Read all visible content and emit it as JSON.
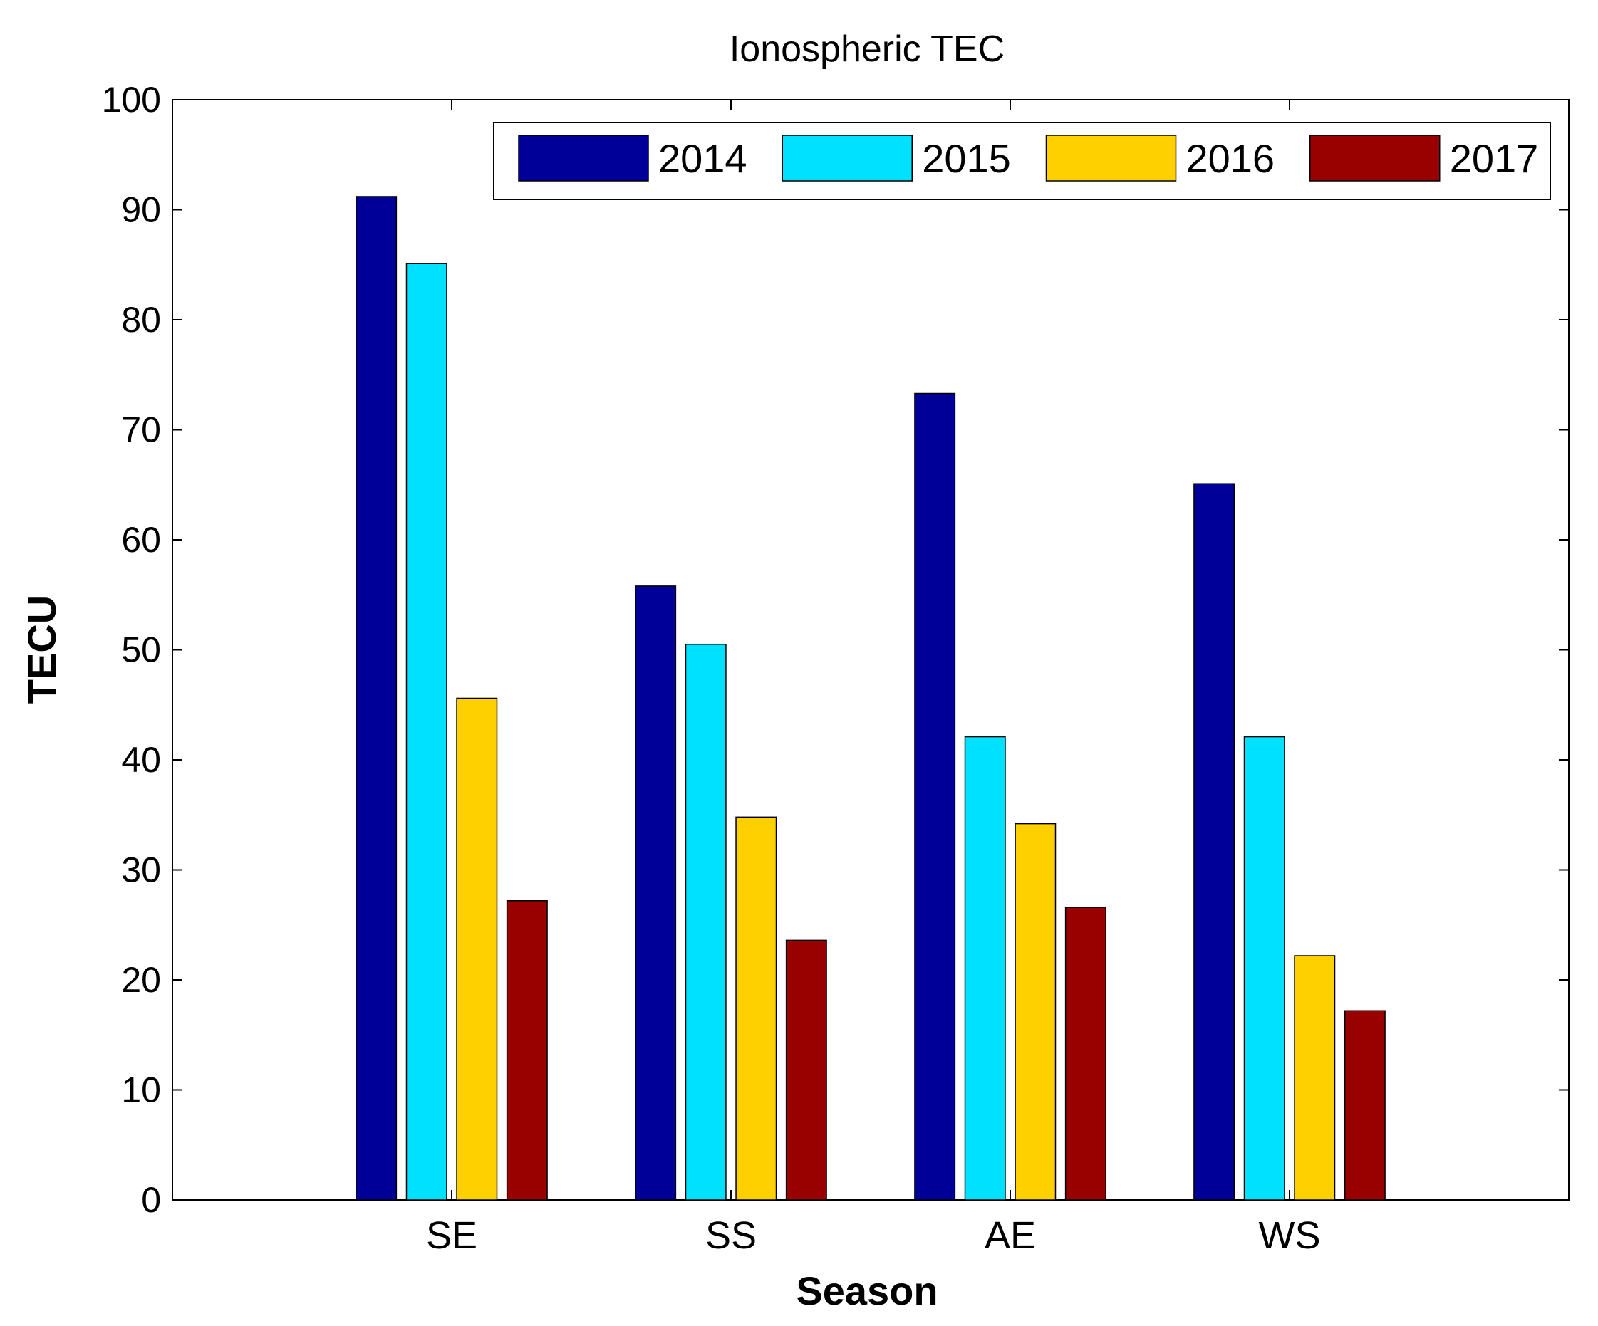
{
  "chart_data": {
    "type": "bar",
    "title": "Ionospheric TEC",
    "xlabel": "Season",
    "ylabel": "TECU",
    "categories": [
      "SE",
      "SS",
      "AE",
      "WS"
    ],
    "series": [
      {
        "name": "2014",
        "color": "#000099",
        "values": [
          91.2,
          55.8,
          73.3,
          65.1
        ]
      },
      {
        "name": "2015",
        "color": "#00E1FF",
        "values": [
          85.1,
          50.5,
          42.1,
          42.1
        ]
      },
      {
        "name": "2016",
        "color": "#FFD000",
        "values": [
          45.6,
          34.8,
          34.2,
          22.2
        ]
      },
      {
        "name": "2017",
        "color": "#990000",
        "values": [
          27.2,
          23.6,
          26.6,
          17.2
        ]
      }
    ],
    "ylim": [
      0,
      100
    ],
    "yticks": [
      "0",
      "10",
      "20",
      "30",
      "40",
      "50",
      "60",
      "70",
      "80",
      "90",
      "100"
    ],
    "grid": false,
    "legend_position": "top-right"
  }
}
